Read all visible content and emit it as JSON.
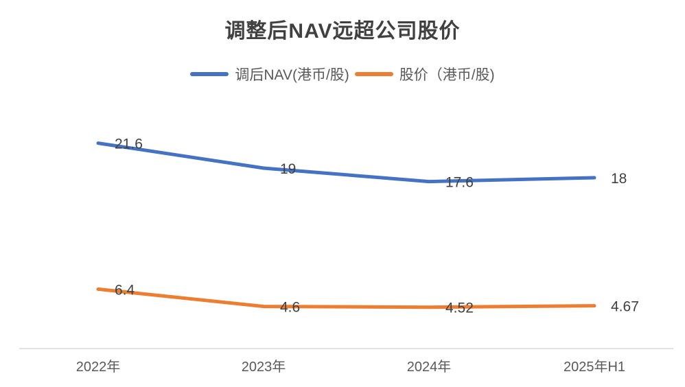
{
  "chart_data": {
    "type": "line",
    "title": "调整后NAV远超公司股价",
    "categories": [
      "2022年",
      "2023年",
      "2024年",
      "2025年H1"
    ],
    "series": [
      {
        "name": "调后NAV(港币/股)",
        "color": "#4472C4",
        "values": [
          21.6,
          19,
          17.6,
          18
        ]
      },
      {
        "name": "股价（港币/股)",
        "color": "#ED7D31",
        "values": [
          6.4,
          4.6,
          4.52,
          4.67
        ]
      }
    ],
    "ylim": [
      0,
      24
    ],
    "grid": false,
    "legend_position": "top",
    "data_label_position": "right",
    "colors": {
      "axis_line": "#D9D9D9",
      "data_label": "#404040",
      "tick_label": "#595959",
      "title": "#404040"
    }
  }
}
